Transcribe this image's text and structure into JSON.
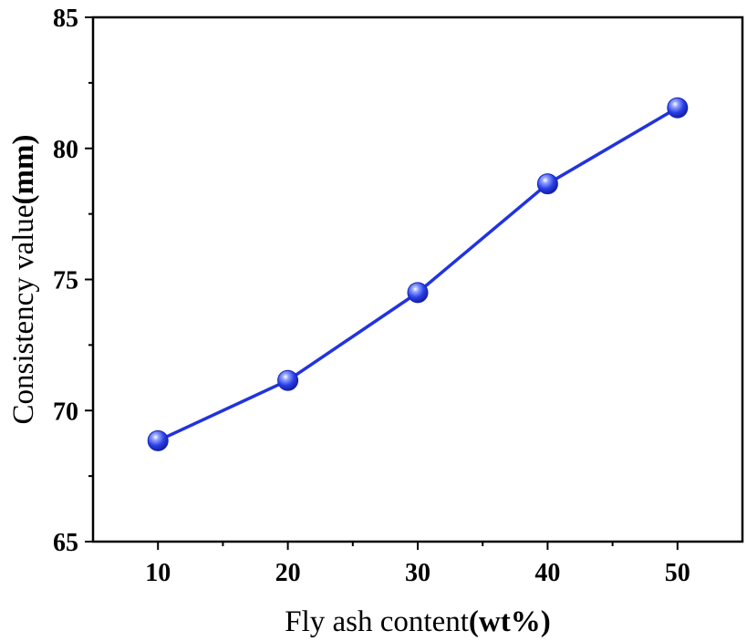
{
  "chart_data": {
    "type": "line",
    "xlabel": "Fly ash content",
    "xlabel_unit": "(wt%)",
    "ylabel": "Consistency value",
    "ylabel_unit": "(mm)",
    "xlim": [
      5,
      55
    ],
    "ylim": [
      65,
      85
    ],
    "xticks": [
      10,
      20,
      30,
      40,
      50
    ],
    "yticks": [
      65,
      70,
      75,
      80,
      85
    ],
    "x_minor_ticks": [
      15,
      25,
      35,
      45
    ],
    "y_minor_ticks": [
      67.5,
      72.5,
      77.5,
      82.5
    ],
    "grid": false,
    "legend": "none",
    "series": [
      {
        "color": "#2233dd",
        "marker": "sphere",
        "x": [
          10,
          20,
          30,
          40,
          50
        ],
        "y": [
          68.85,
          71.15,
          74.5,
          78.65,
          81.55
        ]
      }
    ]
  }
}
